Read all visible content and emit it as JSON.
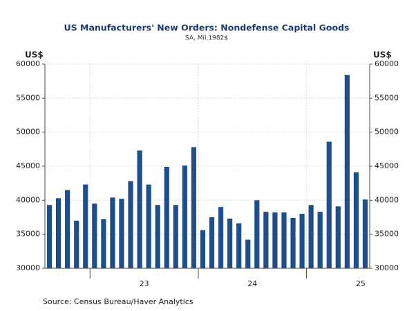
{
  "chart_data": {
    "type": "bar",
    "title": "US Manufacturers' New Orders: Nondefense Capital Goods",
    "subtitle": "SA, Mil.1982$",
    "y_label": "US$",
    "y2_label": "US$",
    "source": "Source:  Census Bureau/Haver Analytics",
    "color": "#1f4e8c",
    "categories": [
      null,
      null,
      null,
      null,
      null,
      null,
      null,
      null,
      null,
      null,
      null,
      null,
      null,
      null,
      null,
      null,
      null,
      null,
      null,
      null,
      null,
      null,
      null,
      null,
      null,
      null,
      null,
      null,
      null,
      null,
      null,
      null,
      null,
      null,
      null,
      null
    ],
    "x_group_labels": [
      "23",
      "24",
      "25"
    ],
    "values": [
      39300,
      40300,
      41500,
      37000,
      42300,
      39500,
      37200,
      40400,
      40200,
      42800,
      47300,
      42300,
      39300,
      44900,
      39300,
      45100,
      47800,
      35600,
      37500,
      39000,
      37300,
      36600,
      34200,
      40000,
      38300,
      38200,
      38200,
      37400,
      38000,
      39300,
      38300,
      48600,
      39100,
      58400,
      44100,
      40100
    ],
    "ylim": [
      30000,
      60000
    ],
    "yticks": [
      30000,
      35000,
      40000,
      45000,
      50000,
      55000,
      60000
    ],
    "y2lim": [
      30000,
      60000
    ],
    "y2ticks": [
      30000,
      35000,
      40000,
      45000,
      50000,
      55000,
      60000
    ],
    "grid": true
  }
}
